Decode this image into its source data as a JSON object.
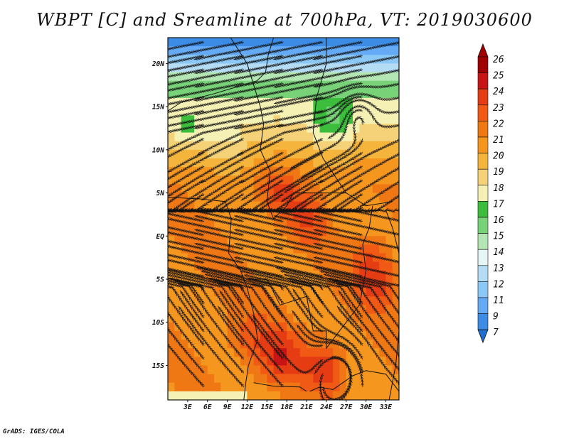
{
  "title": "WBPT [C] and Sreamline at 700hPa, VT: 2019030600",
  "footer": "GrADS: IGES/COLA",
  "map": {
    "projection": "lat-lon",
    "lon_range": [
      0,
      35
    ],
    "lat_range": [
      -19,
      23
    ],
    "field": "wet-bulb potential temperature at 700hPa",
    "overlay": "streamlines",
    "lat_ticks": [
      {
        "label": "20N",
        "value": 20
      },
      {
        "label": "15N",
        "value": 15
      },
      {
        "label": "10N",
        "value": 10
      },
      {
        "label": "5N",
        "value": 5
      },
      {
        "label": "EQ",
        "value": 0
      },
      {
        "label": "5S",
        "value": -5
      },
      {
        "label": "10S",
        "value": -10
      },
      {
        "label": "15S",
        "value": -15
      }
    ],
    "lon_ticks": [
      {
        "label": "3E",
        "value": 3
      },
      {
        "label": "6E",
        "value": 6
      },
      {
        "label": "9E",
        "value": 9
      },
      {
        "label": "12E",
        "value": 12
      },
      {
        "label": "15E",
        "value": 15
      },
      {
        "label": "18E",
        "value": 18
      },
      {
        "label": "21E",
        "value": 21
      },
      {
        "label": "24E",
        "value": 24
      },
      {
        "label": "27E",
        "value": 27
      },
      {
        "label": "30E",
        "value": 30
      },
      {
        "label": "33E",
        "value": 33
      }
    ]
  },
  "colorbar": {
    "levels": [
      "26",
      "25",
      "24",
      "23",
      "22",
      "21",
      "20",
      "19",
      "18",
      "17",
      "16",
      "15",
      "14",
      "13",
      "12",
      "11",
      "9",
      "7"
    ],
    "colors": [
      "#a00000",
      "#c81414",
      "#e63c14",
      "#f05a14",
      "#f07814",
      "#f5961e",
      "#f5b43c",
      "#f5d278",
      "#f5f0b4",
      "#3cbe3c",
      "#78d278",
      "#b4e6b4",
      "#e6f5f5",
      "#b4dcf5",
      "#8cc8f5",
      "#64aaf5",
      "#3c8ce6",
      "#1e6ed2"
    ]
  }
}
